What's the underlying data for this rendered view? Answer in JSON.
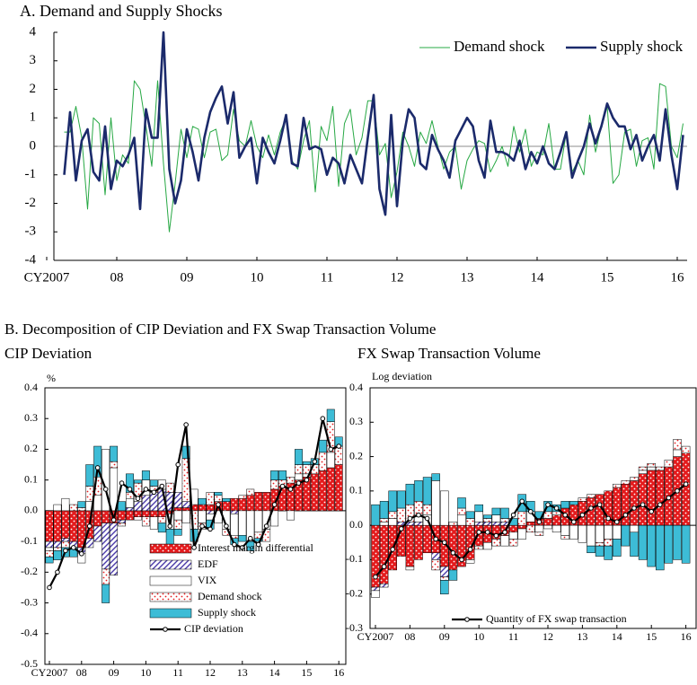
{
  "heading": "B. Decomposition of CIP Deviation and FX Swap Transaction Volume",
  "chart_data": [
    {
      "type": "line",
      "title": "A. Demand and Supply Shocks",
      "legend": "upper right",
      "categories": [
        "CY2007",
        null,
        null,
        null,
        null,
        null,
        null,
        null,
        null,
        null,
        null,
        null,
        "08",
        null,
        null,
        null,
        null,
        null,
        null,
        null,
        null,
        null,
        null,
        null,
        "09",
        null,
        null,
        null,
        null,
        null,
        null,
        null,
        null,
        null,
        null,
        null,
        "10",
        null,
        null,
        null,
        null,
        null,
        null,
        null,
        null,
        null,
        null,
        null,
        "11",
        null,
        null,
        null,
        null,
        null,
        null,
        null,
        null,
        null,
        null,
        null,
        "12",
        null,
        null,
        null,
        null,
        null,
        null,
        null,
        null,
        null,
        null,
        null,
        "13",
        null,
        null,
        null,
        null,
        null,
        null,
        null,
        null,
        null,
        null,
        null,
        "14",
        null,
        null,
        null,
        null,
        null,
        null,
        null,
        null,
        null,
        null,
        null,
        "15",
        null,
        null,
        null,
        null,
        null,
        null,
        null,
        null,
        null,
        null,
        null,
        "16",
        null
      ],
      "ylim": [
        -4,
        4
      ],
      "yticks": [
        -4,
        -3,
        -2,
        -1,
        0,
        1,
        2,
        3,
        4
      ],
      "series": [
        {
          "name": "Demand shock",
          "color": "#27a844",
          "line_width": 1,
          "values": [
            null,
            null,
            null,
            0.5,
            0.5,
            1.4,
            0.3,
            -2.2,
            1.0,
            0.8,
            -1.7,
            1.0,
            -1.2,
            -0.3,
            -0.6,
            2.3,
            2.0,
            0.7,
            -0.7,
            2.3,
            -0.6,
            -3.0,
            -1.3,
            0.6,
            -0.4,
            0.7,
            0.6,
            -0.4,
            0.5,
            0.6,
            -0.5,
            -0.3,
            1.3,
            0.2,
            0.0,
            0.9,
            0.0,
            -0.4,
            0.4,
            -0.3,
            0.5,
            1.0,
            -0.5,
            -0.8,
            0.2,
            0.9,
            -1.6,
            0.7,
            0.2,
            1.4,
            -1.4,
            0.8,
            1.3,
            -0.3,
            0.3,
            1.6,
            1.6,
            -0.3,
            0.1,
            -1.8,
            -0.9,
            0.5,
            0.0,
            -0.7,
            0.5,
            0.1,
            0.9,
            0.0,
            -0.8,
            -0.2,
            0.0,
            -1.5,
            -0.5,
            -0.1,
            0.2,
            0.1,
            -0.9,
            -0.5,
            0.0,
            -0.7,
            0.7,
            -0.2,
            0.6,
            -0.7,
            -0.2,
            -0.3,
            0.8,
            -0.8,
            -0.8,
            0.5,
            -0.9,
            -0.5,
            -1.0,
            1.1,
            -0.2,
            0.7,
            1.4,
            -1.3,
            -1.0,
            0.5,
            0.6,
            -0.7,
            0.2,
            0.3,
            -0.8,
            2.2,
            2.1,
            0.0,
            -0.4,
            0.8
          ]
        },
        {
          "name": "Supply shock",
          "color": "#1b2a6b",
          "line_width": 2.6,
          "values": [
            null,
            null,
            null,
            -1.0,
            1.2,
            -1.2,
            0.2,
            0.6,
            -0.9,
            -1.2,
            0.7,
            -1.5,
            -0.5,
            -0.7,
            -0.3,
            0.3,
            -2.2,
            1.3,
            0.3,
            0.3,
            4.0,
            -0.8,
            -2.0,
            -1.2,
            0.6,
            -0.2,
            -1.2,
            0.3,
            1.2,
            1.7,
            2.1,
            0.8,
            1.9,
            -0.4,
            0.0,
            0.3,
            -1.3,
            0.3,
            -0.2,
            -0.6,
            0.2,
            1.1,
            -0.6,
            -0.7,
            1.0,
            -0.1,
            0.0,
            -0.1,
            -1.0,
            -0.4,
            -0.6,
            -1.3,
            -0.3,
            -0.8,
            -1.3,
            0.3,
            1.8,
            -1.5,
            -2.4,
            1.1,
            -2.1,
            0.2,
            1.3,
            1.0,
            -0.6,
            -0.8,
            0.4,
            -0.1,
            -0.5,
            -1.1,
            0.2,
            0.6,
            1.0,
            0.7,
            -0.5,
            -1.1,
            0.9,
            -0.2,
            -0.2,
            -0.3,
            -0.5,
            0.2,
            -0.8,
            -0.2,
            -0.6,
            0.0,
            -0.6,
            -0.8,
            -0.2,
            0.5,
            -1.1,
            -0.5,
            0.0,
            0.8,
            0.1,
            0.7,
            1.5,
            1.0,
            0.7,
            0.7,
            -0.1,
            0.4,
            -0.5,
            0.0,
            0.4,
            -0.5,
            1.3,
            -0.3,
            -1.5,
            0.4
          ]
        }
      ]
    },
    {
      "type": "bar",
      "stacked": true,
      "title": "CIP Deviation",
      "y_label": "%",
      "legend": "lower center",
      "categories": [
        "CY2007",
        null,
        null,
        null,
        "08",
        null,
        null,
        null,
        "09",
        null,
        null,
        null,
        "10",
        null,
        null,
        null,
        "11",
        null,
        null,
        null,
        "12",
        null,
        null,
        null,
        "13",
        null,
        null,
        null,
        "14",
        null,
        null,
        null,
        "15",
        null,
        null,
        null,
        "16"
      ],
      "ylim": [
        -0.5,
        0.4
      ],
      "yticks": [
        -0.5,
        -0.4,
        -0.3,
        -0.2,
        -0.1,
        {
          "value": 0,
          "label": "0.0"
        },
        0.1,
        0.2,
        0.3,
        0.4
      ],
      "series": [
        {
          "name": "Interest margin differential",
          "color": "#e31a1c",
          "pattern": "dots",
          "pattern_color": "#ffffff",
          "values": [
            -0.1,
            -0.1,
            -0.09,
            -0.1,
            -0.12,
            -0.09,
            -0.05,
            -0.04,
            -0.04,
            -0.03,
            -0.03,
            -0.02,
            -0.02,
            -0.02,
            -0.02,
            -0.01,
            0.01,
            0.01,
            0.02,
            0.02,
            0.02,
            0.03,
            0.03,
            0.04,
            0.04,
            0.05,
            0.06,
            0.06,
            0.07,
            0.08,
            0.09,
            0.1,
            0.11,
            0.12,
            0.13,
            0.14,
            0.15
          ]
        },
        {
          "name": "EDF",
          "color": "#ffffff",
          "pattern": "hatch",
          "pattern_color": "#4a3aa8",
          "values": [
            -0.02,
            -0.02,
            -0.01,
            -0.02,
            -0.02,
            -0.03,
            -0.05,
            -0.15,
            -0.17,
            -0.01,
            0.01,
            0.03,
            0.05,
            0.06,
            0.07,
            0.06,
            0.05,
            0.02,
            0,
            0,
            -0.01,
            0,
            0,
            -0.01,
            0,
            0,
            0,
            0,
            0,
            0,
            0,
            0,
            0,
            0,
            0,
            0,
            0
          ]
        },
        {
          "name": "VIX",
          "color": "#ffffff",
          "values": [
            -0.01,
            0.02,
            0.04,
            0.0,
            -0.03,
            0.03,
            0.05,
            0.2,
            0.14,
            0.0,
            0.03,
            -0.01,
            0.05,
            -0.04,
            0.03,
            -0.05,
            -0.03,
            -0.04,
            0.05,
            -0.04,
            -0.02,
            -0.04,
            -0.06,
            -0.07,
            -0.08,
            -0.1,
            -0.07,
            -0.06,
            -0.05,
            0.0,
            -0.03,
            0.02,
            0.01,
            0.0,
            0.0,
            0.05,
            0.0
          ]
        },
        {
          "name": "Demand shock",
          "color": "#ffffff",
          "pattern": "dots",
          "pattern_color": "#e31a1c",
          "values": [
            -0.02,
            -0.01,
            -0.02,
            0.02,
            0.01,
            0.05,
            0.06,
            -0.05,
            0.02,
            -0.01,
            0.02,
            0.06,
            -0.03,
            0.02,
            -0.02,
            0.03,
            -0.03,
            0.14,
            -0.06,
            -0.02,
            0.04,
            0.02,
            -0.02,
            -0.01,
            0.01,
            0.02,
            -0.02,
            -0.04,
            0.03,
            0.02,
            0.02,
            0.03,
            0.03,
            0.03,
            0.06,
            0.1,
            0.06
          ]
        },
        {
          "name": "Supply shock",
          "color": "#3dbcd6",
          "values": [
            -0.02,
            -0.03,
            -0.03,
            -0.03,
            0.02,
            0.07,
            0.1,
            -0.06,
            0.05,
            0.03,
            0.06,
            0.01,
            0.03,
            0.02,
            -0.03,
            -0.05,
            -0.02,
            0.04,
            -0.04,
            0.02,
            -0.03,
            0.01,
            0.01,
            -0.02,
            -0.02,
            -0.03,
            -0.01,
            0.0,
            0.03,
            0.03,
            0.0,
            0.05,
            0.01,
            0.02,
            0.04,
            0.04,
            0.03
          ]
        },
        {
          "name": "CIP deviation",
          "type": "line",
          "color": "#000000",
          "values": [
            -0.25,
            -0.2,
            -0.13,
            -0.12,
            -0.14,
            -0.05,
            0.14,
            0.07,
            -0.03,
            0.09,
            0.07,
            0.04,
            0.07,
            0.06,
            0.08,
            -0.05,
            0.15,
            0.28,
            -0.12,
            -0.05,
            -0.06,
            0.02,
            -0.05,
            -0.11,
            -0.12,
            -0.09,
            -0.11,
            -0.05,
            0.02,
            0.08,
            0.07,
            0.09,
            0.1,
            0.16,
            0.3,
            0.2,
            0.21
          ]
        }
      ]
    },
    {
      "type": "bar",
      "stacked": true,
      "title": "FX Swap Transaction Volume",
      "y_label": "Log deviation",
      "legend": "lower center",
      "categories": [
        "CY2007",
        null,
        null,
        null,
        "08",
        null,
        null,
        null,
        "09",
        null,
        null,
        null,
        "10",
        null,
        null,
        null,
        "11",
        null,
        null,
        null,
        "12",
        null,
        null,
        null,
        "13",
        null,
        null,
        null,
        "14",
        null,
        null,
        null,
        "15",
        null,
        null,
        null,
        "16"
      ],
      "ylim": [
        -0.3,
        0.4
      ],
      "yticks": [
        -0.3,
        -0.2,
        -0.1,
        {
          "value": 0,
          "label": "0.0"
        },
        0.1,
        0.2,
        0.3,
        0.4
      ],
      "series": [
        {
          "color": "#e31a1c",
          "pattern": "dots",
          "pattern_color": "#ffffff",
          "values": [
            -0.18,
            -0.17,
            -0.13,
            -0.09,
            -0.12,
            -0.1,
            -0.08,
            -0.08,
            -0.12,
            -0.13,
            -0.12,
            -0.1,
            -0.06,
            -0.05,
            -0.04,
            -0.03,
            -0.02,
            -0.01,
            0.01,
            0.02,
            0.02,
            0.03,
            0.05,
            0.06,
            0.07,
            0.08,
            0.09,
            0.1,
            0.11,
            0.12,
            0.13,
            0.15,
            0.16,
            0.16,
            0.17,
            0.2,
            0.21
          ]
        },
        {
          "color": "#ffffff",
          "pattern": "hatch",
          "pattern_color": "#4a3aa8",
          "values": [
            -0.01,
            -0.01,
            0,
            0.01,
            0.01,
            0.01,
            0,
            -0.02,
            -0.03,
            0,
            0,
            0,
            0.01,
            0.01,
            0.01,
            0.01,
            0,
            0,
            0,
            0,
            0,
            0,
            0,
            0,
            0,
            0,
            0,
            0,
            0,
            0,
            0,
            0,
            0,
            0,
            0,
            0,
            0
          ]
        },
        {
          "color": "#ffffff",
          "values": [
            -0.02,
            0.01,
            0.02,
            0.0,
            -0.01,
            0.02,
            0.03,
            0.13,
            0.1,
            0.0,
            0.03,
            -0.01,
            0.03,
            -0.02,
            0.02,
            -0.03,
            -0.02,
            -0.03,
            0.03,
            -0.02,
            -0.01,
            -0.02,
            -0.03,
            -0.04,
            -0.05,
            -0.06,
            -0.05,
            -0.04,
            -0.04,
            0.0,
            -0.02,
            0.01,
            0.01,
            0.0,
            0.0,
            0.02,
            0.0
          ]
        },
        {
          "color": "#ffffff",
          "pattern": "dots",
          "pattern_color": "#e31a1c",
          "values": [
            0.0,
            0.01,
            0.02,
            0.04,
            0.05,
            0.04,
            0.03,
            -0.03,
            -0.01,
            0.01,
            0.02,
            0.02,
            -0.01,
            0.01,
            -0.02,
            0.01,
            -0.02,
            0.04,
            -0.02,
            -0.01,
            0.02,
            0.01,
            -0.01,
            0.0,
            0.01,
            0.01,
            -0.01,
            -0.02,
            0.01,
            0.01,
            0.01,
            0.01,
            0.01,
            0.01,
            0.02,
            0.03,
            0.02
          ]
        },
        {
          "color": "#3dbcd6",
          "values": [
            0.06,
            0.05,
            0.06,
            0.05,
            0.06,
            0.06,
            0.08,
            0.02,
            -0.04,
            -0.03,
            0.03,
            0.02,
            0.02,
            0.01,
            0.02,
            0.03,
            0.02,
            0.05,
            0.03,
            0.02,
            0.03,
            0.02,
            0.02,
            0.01,
            0.0,
            -0.02,
            -0.03,
            -0.04,
            -0.05,
            -0.06,
            -0.07,
            -0.1,
            -0.12,
            -0.13,
            -0.11,
            -0.1,
            -0.11
          ]
        },
        {
          "name": "Quantity of FX swap transaction",
          "type": "line",
          "color": "#000000",
          "values": [
            -0.15,
            -0.12,
            -0.07,
            -0.01,
            0.02,
            0.03,
            0.02,
            -0.04,
            -0.05,
            -0.08,
            -0.1,
            -0.07,
            -0.02,
            -0.02,
            -0.03,
            -0.02,
            0.03,
            0.07,
            0.04,
            0.01,
            0.06,
            0.05,
            0.03,
            0.01,
            0.03,
            0.05,
            0.06,
            0.02,
            0.01,
            0.03,
            0.05,
            0.06,
            0.04,
            0.06,
            0.08,
            0.1,
            0.12
          ]
        }
      ]
    }
  ]
}
